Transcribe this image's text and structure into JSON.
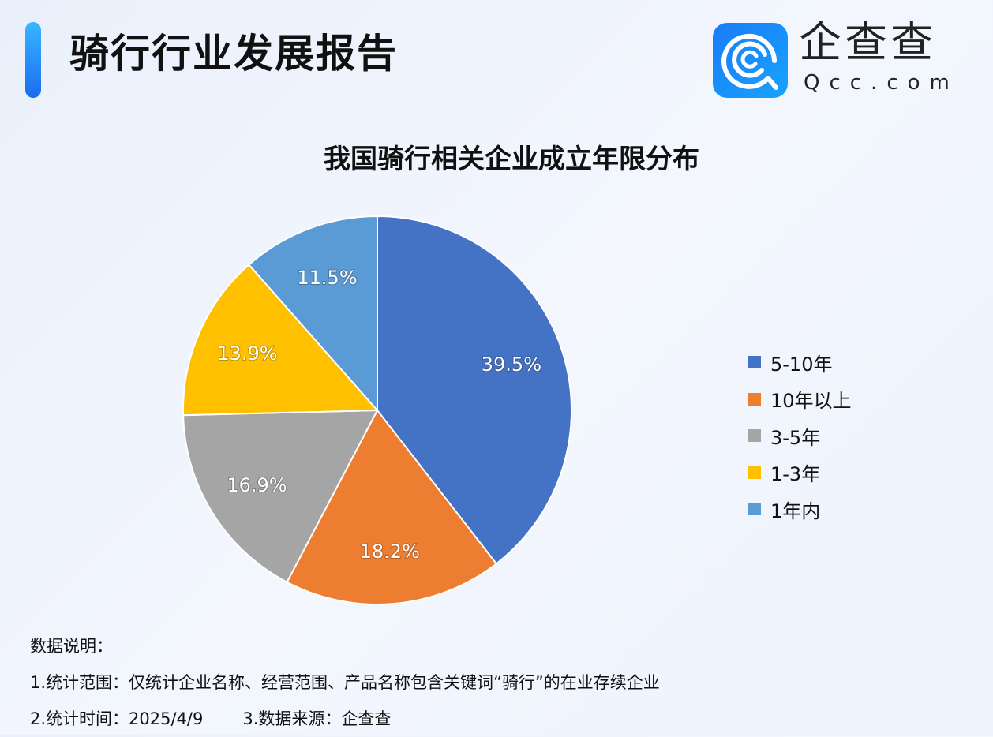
{
  "header": {
    "title": "骑行行业发展报告",
    "logo_cn": "企查查",
    "logo_en": "Qcc.com"
  },
  "chart_data": {
    "type": "pie",
    "title": "我国骑行相关企业成立年限分布",
    "categories": [
      "5-10年",
      "10年以上",
      "3-5年",
      "1-3年",
      "1年内"
    ],
    "values": [
      39.5,
      18.2,
      16.9,
      13.9,
      11.5
    ],
    "labels": [
      "39.5%",
      "18.2%",
      "16.9%",
      "13.9%",
      "11.5%"
    ],
    "colors": [
      "#4472C4",
      "#ED7D31",
      "#A5A5A5",
      "#FFC000",
      "#5B9BD5"
    ],
    "legend_position": "right"
  },
  "notes": {
    "heading": "数据说明：",
    "line1": "1.统计范围：仅统计企业名称、经营范围、产品名称包含关键词“骑行”的在业存续企业",
    "line2a": "2.统计时间：2025/4/9",
    "line2b": "3.数据来源：企查查"
  }
}
